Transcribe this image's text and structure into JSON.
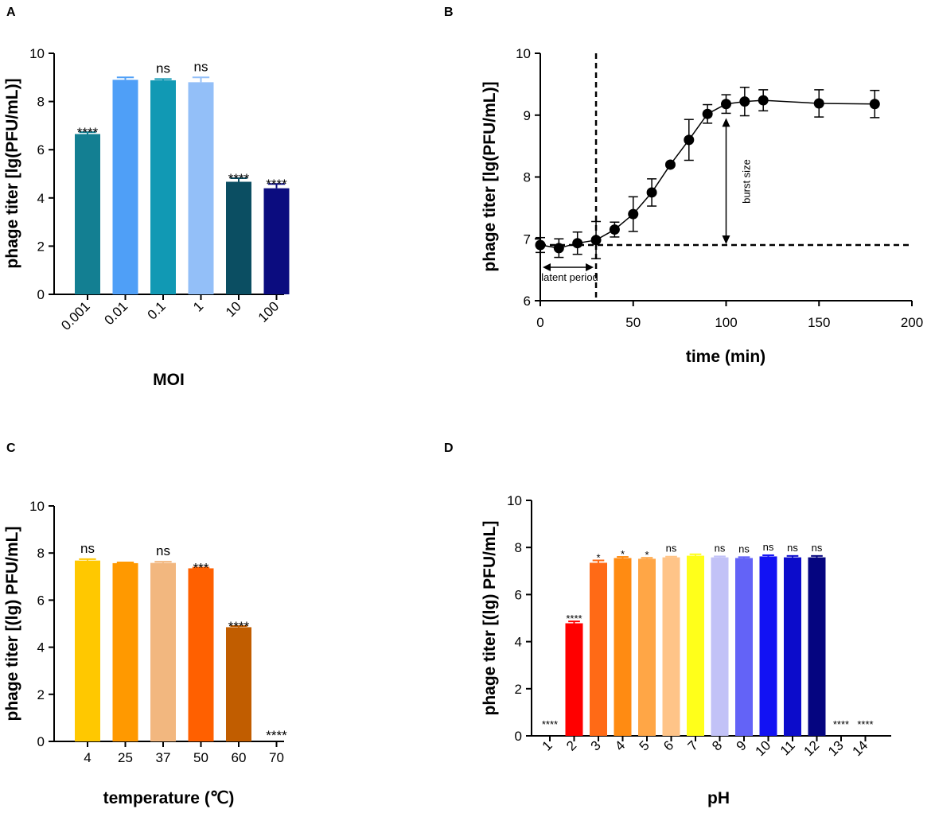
{
  "chart_data": [
    {
      "panel": "A",
      "type": "bar",
      "xlabel": "MOI",
      "ylabel": "phage titer [lg(PFU/mL)]",
      "ylim": [
        0,
        10
      ],
      "yticks": [
        "0",
        "2",
        "4",
        "6",
        "8",
        "10"
      ],
      "categories": [
        "0.001",
        "0.01",
        "0.1",
        "1",
        "10",
        "100"
      ],
      "values": [
        6.65,
        8.9,
        8.88,
        8.8,
        4.67,
        4.4
      ],
      "errors": [
        0.08,
        0.1,
        0.05,
        0.2,
        0.15,
        0.18
      ],
      "colors": [
        "#137f92",
        "#4f9ff7",
        "#1199b4",
        "#93bff8",
        "#0b4e62",
        "#0b0c7f"
      ],
      "significance": [
        "****",
        "",
        "ns",
        "ns",
        "****",
        "****"
      ]
    },
    {
      "panel": "B",
      "type": "line",
      "xlabel": "time (min)",
      "ylabel": "phage titer [lg(PFU/mL)]",
      "xlim": [
        0,
        200
      ],
      "ylim": [
        6,
        10
      ],
      "xticks": [
        "0",
        "50",
        "100",
        "150",
        "200"
      ],
      "yticks": [
        "6",
        "7",
        "8",
        "9",
        "10"
      ],
      "x": [
        0,
        10,
        20,
        30,
        40,
        50,
        60,
        70,
        80,
        90,
        100,
        110,
        120,
        150,
        180
      ],
      "y": [
        6.9,
        6.85,
        6.93,
        6.98,
        7.15,
        7.4,
        7.75,
        8.2,
        8.6,
        9.02,
        9.18,
        9.22,
        9.24,
        9.19,
        9.18
      ],
      "errors": [
        0.12,
        0.15,
        0.18,
        0.3,
        0.12,
        0.28,
        0.22,
        0.0,
        0.33,
        0.15,
        0.15,
        0.23,
        0.17,
        0.22,
        0.22
      ],
      "latent_line_x": 30,
      "baseline_y": 6.9,
      "burst_x": 100,
      "annotations": {
        "latent": "latent period",
        "burst": "burst size"
      }
    },
    {
      "panel": "C",
      "type": "bar",
      "xlabel": "temperature (℃)",
      "ylabel": "phage titer [(lg) PFU/mL]",
      "ylim": [
        0,
        10
      ],
      "yticks": [
        "0",
        "2",
        "4",
        "6",
        "8",
        "10"
      ],
      "categories": [
        "4",
        "25",
        "37",
        "50",
        "60",
        "70"
      ],
      "values": [
        7.68,
        7.57,
        7.58,
        7.35,
        4.85,
        0
      ],
      "errors": [
        0.06,
        0.03,
        0.05,
        0.03,
        0.05,
        0
      ],
      "colors": [
        "#ffc800",
        "#ff9900",
        "#f2b77f",
        "#ff6000",
        "#c15d00",
        "#c15d00"
      ],
      "significance": [
        "ns",
        "",
        "ns",
        "***",
        "****",
        "****"
      ]
    },
    {
      "panel": "D",
      "type": "bar",
      "xlabel": "pH",
      "ylabel": "phage titer [(lg) PFU/mL]",
      "ylim": [
        0,
        10
      ],
      "yticks": [
        "0",
        "2",
        "4",
        "6",
        "8",
        "10"
      ],
      "categories": [
        "1",
        "2",
        "3",
        "4",
        "5",
        "6",
        "7",
        "8",
        "9",
        "10",
        "11",
        "12",
        "13",
        "14"
      ],
      "values": [
        0,
        4.78,
        7.35,
        7.55,
        7.52,
        7.58,
        7.65,
        7.58,
        7.55,
        7.62,
        7.58,
        7.58,
        0,
        0
      ],
      "errors": [
        0,
        0.08,
        0.1,
        0.05,
        0.04,
        0.03,
        0.06,
        0.04,
        0.04,
        0.05,
        0.06,
        0.06,
        0,
        0
      ],
      "colors": [
        "#ff0000",
        "#ff0000",
        "#ff6a16",
        "#ff8b12",
        "#ffa646",
        "#ffc488",
        "#ffff1a",
        "#c2c2f7",
        "#6363f7",
        "#1212f3",
        "#0c0ccb",
        "#050580",
        "#050580",
        "#050580"
      ],
      "significance": [
        "****",
        "****",
        "*",
        "*",
        "*",
        "ns",
        "",
        "ns",
        "ns",
        "ns",
        "ns",
        "ns",
        "****",
        "****"
      ]
    }
  ]
}
